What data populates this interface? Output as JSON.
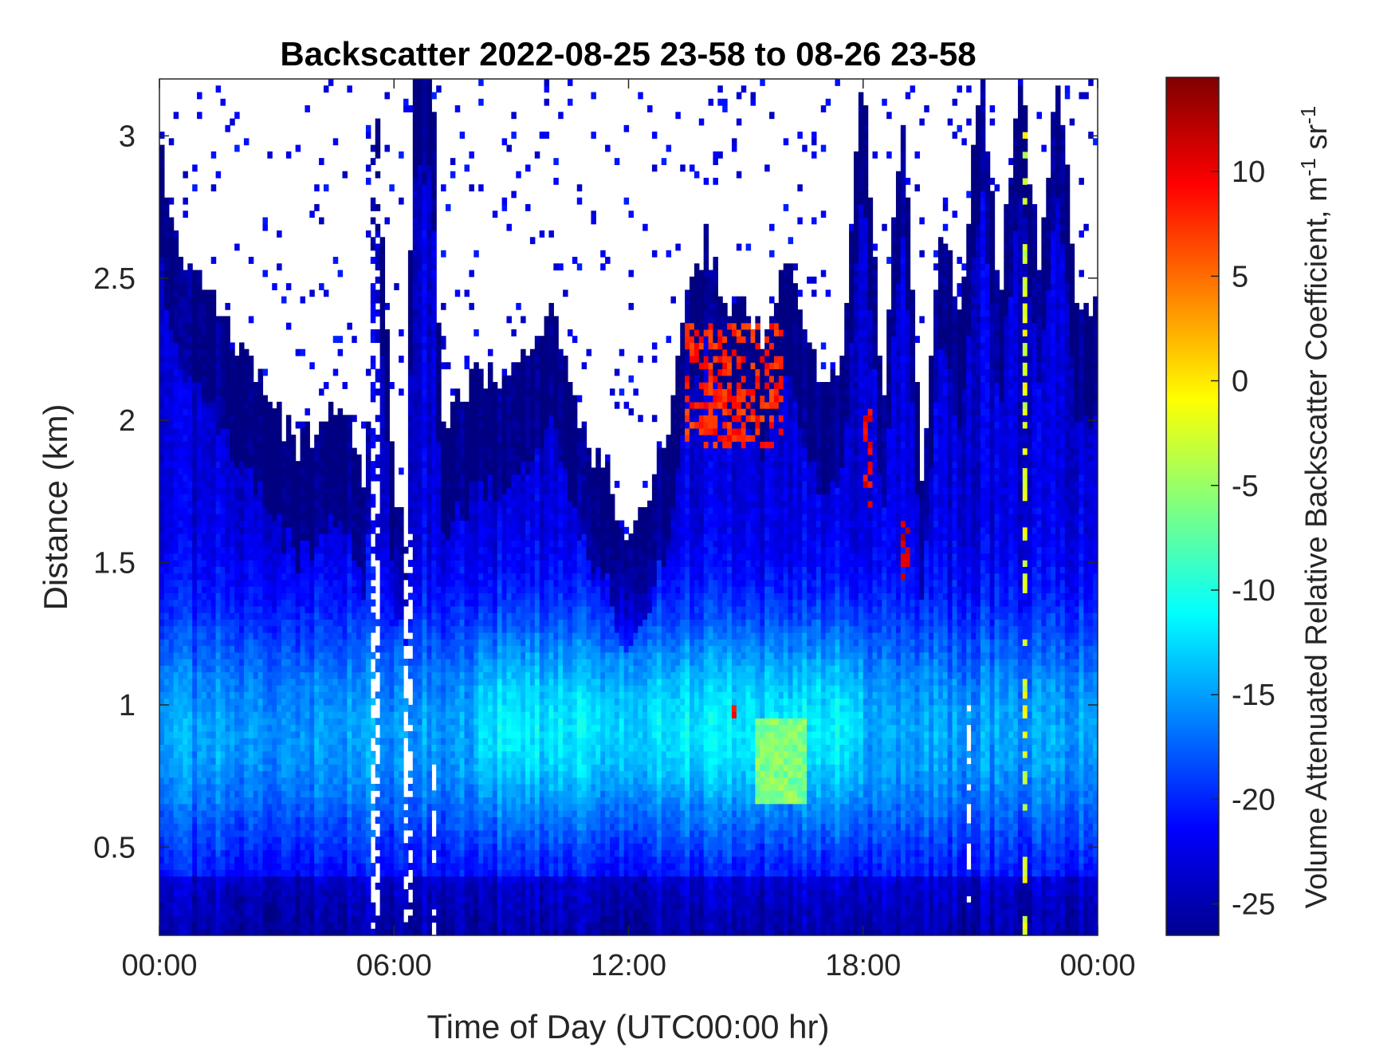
{
  "chart_data": {
    "type": "heatmap",
    "title": "Backscatter 2022-08-25 23-58 to 08-26 23-58",
    "xlabel": "Time of Day (UTC00:00 hr)",
    "ylabel": "Distance (km)",
    "colorbar_label": "Volume Attenuated Relative Backscatter Coefficient, m-1 sr-1",
    "colormap": "jet",
    "clim": [
      -26.5,
      14.5
    ],
    "xlim": [
      0,
      24
    ],
    "ylim": [
      0.19,
      3.2
    ],
    "x_ticks": [
      {
        "value": 0,
        "label": "00:00"
      },
      {
        "value": 6,
        "label": "06:00"
      },
      {
        "value": 12,
        "label": "12:00"
      },
      {
        "value": 18,
        "label": "18:00"
      },
      {
        "value": 24,
        "label": "00:00"
      }
    ],
    "y_ticks": [
      {
        "value": 0.5,
        "label": "0.5"
      },
      {
        "value": 1,
        "label": "1"
      },
      {
        "value": 1.5,
        "label": "1.5"
      },
      {
        "value": 2,
        "label": "2"
      },
      {
        "value": 2.5,
        "label": "2.5"
      },
      {
        "value": 3,
        "label": "3"
      }
    ],
    "colorbar_ticks": [
      {
        "value": -25,
        "label": "-25"
      },
      {
        "value": -20,
        "label": "-20"
      },
      {
        "value": -15,
        "label": "-15"
      },
      {
        "value": -10,
        "label": "-10"
      },
      {
        "value": -5,
        "label": "-5"
      },
      {
        "value": 0,
        "label": "0"
      },
      {
        "value": 5,
        "label": "5"
      },
      {
        "value": 10,
        "label": "10"
      }
    ],
    "top_of_signal_km": [
      {
        "t": 0.0,
        "h": 2.95
      },
      {
        "t": 0.5,
        "h": 2.5
      },
      {
        "t": 1.0,
        "h": 2.45
      },
      {
        "t": 1.5,
        "h": 2.35
      },
      {
        "t": 2.0,
        "h": 2.2
      },
      {
        "t": 2.5,
        "h": 2.1
      },
      {
        "t": 3.0,
        "h": 2.0
      },
      {
        "t": 3.5,
        "h": 1.85
      },
      {
        "t": 4.0,
        "h": 1.9
      },
      {
        "t": 4.5,
        "h": 2.0
      },
      {
        "t": 5.0,
        "h": 1.9
      },
      {
        "t": 5.3,
        "h": 1.7
      },
      {
        "t": 5.5,
        "h": 3.2
      },
      {
        "t": 6.0,
        "h": 1.7
      },
      {
        "t": 6.3,
        "h": 1.55
      },
      {
        "t": 6.5,
        "h": 3.2
      },
      {
        "t": 7.0,
        "h": 3.2
      },
      {
        "t": 7.2,
        "h": 1.9
      },
      {
        "t": 8.0,
        "h": 2.1
      },
      {
        "t": 9.0,
        "h": 2.1
      },
      {
        "t": 10.0,
        "h": 2.35
      },
      {
        "t": 11.0,
        "h": 1.85
      },
      {
        "t": 11.5,
        "h": 1.75
      },
      {
        "t": 12.0,
        "h": 1.55
      },
      {
        "t": 12.5,
        "h": 1.7
      },
      {
        "t": 13.0,
        "h": 1.9
      },
      {
        "t": 13.5,
        "h": 2.35
      },
      {
        "t": 14.0,
        "h": 2.6
      },
      {
        "t": 14.5,
        "h": 2.3
      },
      {
        "t": 15.0,
        "h": 2.35
      },
      {
        "t": 15.5,
        "h": 2.2
      },
      {
        "t": 16.0,
        "h": 2.55
      },
      {
        "t": 16.5,
        "h": 2.3
      },
      {
        "t": 17.0,
        "h": 2.05
      },
      {
        "t": 17.5,
        "h": 2.2
      },
      {
        "t": 18.0,
        "h": 3.2
      },
      {
        "t": 18.5,
        "h": 2.0
      },
      {
        "t": 19.0,
        "h": 3.1
      },
      {
        "t": 19.5,
        "h": 1.75
      },
      {
        "t": 20.0,
        "h": 2.6
      },
      {
        "t": 20.5,
        "h": 2.35
      },
      {
        "t": 21.0,
        "h": 3.2
      },
      {
        "t": 21.5,
        "h": 2.4
      },
      {
        "t": 22.0,
        "h": 3.2
      },
      {
        "t": 22.5,
        "h": 2.5
      },
      {
        "t": 23.0,
        "h": 3.2
      },
      {
        "t": 23.5,
        "h": 2.3
      },
      {
        "t": 24.0,
        "h": 2.35
      }
    ],
    "features": [
      {
        "type": "gap",
        "t_start": 5.4,
        "t_end": 5.6,
        "h_start": 0.19,
        "h_end": 3.2
      },
      {
        "type": "gap",
        "t_start": 6.2,
        "t_end": 6.5,
        "h_start": 0.19,
        "h_end": 1.6
      },
      {
        "type": "gap",
        "t_start": 6.9,
        "t_end": 7.1,
        "h_start": 0.19,
        "h_end": 0.8
      },
      {
        "type": "gap",
        "t_start": 20.6,
        "t_end": 20.8,
        "h_start": 0.3,
        "h_end": 1.0
      },
      {
        "type": "peak",
        "t_start": 13.5,
        "t_end": 16.0,
        "h_start": 1.9,
        "h_end": 2.35,
        "value": 8
      },
      {
        "type": "peak",
        "t_start": 18.0,
        "t_end": 18.2,
        "h_start": 1.7,
        "h_end": 2.05,
        "value": 10
      },
      {
        "type": "peak",
        "t_start": 19.0,
        "t_end": 19.2,
        "h_start": 1.45,
        "h_end": 1.65,
        "value": 12
      },
      {
        "type": "peak",
        "t_start": 14.7,
        "t_end": 14.8,
        "h_start": 0.95,
        "h_end": 1.0,
        "value": 10
      },
      {
        "type": "peak",
        "t_start": 22.1,
        "t_end": 22.2,
        "h_start": 0.19,
        "h_end": 3.2,
        "value": -2
      },
      {
        "type": "enhanced",
        "t_start": 15.2,
        "t_end": 16.6,
        "h_start": 0.65,
        "h_end": 0.95,
        "value": -6
      }
    ]
  }
}
